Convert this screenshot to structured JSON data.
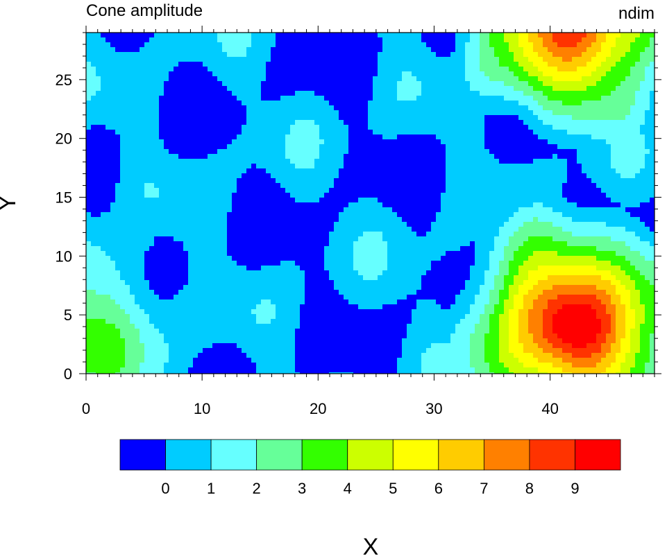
{
  "chart_data": {
    "type": "heatmap",
    "subtype": "filled-contour",
    "title": "Cone amplitude",
    "right_title": "ndim",
    "xlabel": "X",
    "ylabel": "Y",
    "xlim": [
      0,
      49
    ],
    "ylim": [
      0,
      29
    ],
    "x_ticks": [
      0,
      10,
      20,
      30,
      40
    ],
    "y_ticks": [
      0,
      5,
      10,
      15,
      20,
      25
    ],
    "colorbar": {
      "placement": "bottom",
      "levels": [
        0,
        1,
        2,
        3,
        4,
        5,
        6,
        7,
        8,
        9
      ],
      "colors": [
        "#0000ff",
        "#00ccff",
        "#66ffff",
        "#66ff99",
        "#33ff00",
        "#ccff00",
        "#ffff00",
        "#ffcc00",
        "#ff8000",
        "#ff3300",
        "#ff0000"
      ]
    },
    "features": [
      {
        "kind": "cone",
        "center": [
          42,
          4
        ],
        "peak": 10,
        "note": "main cone, red center"
      },
      {
        "kind": "cone",
        "center": [
          42,
          30
        ],
        "peak": 8.5,
        "note": "cone partially outside top edge"
      },
      {
        "kind": "cone",
        "center": [
          -1,
          3.5
        ],
        "peak": 3.3,
        "note": "cone outside left edge"
      }
    ],
    "background_range": [
      -1,
      1
    ]
  }
}
